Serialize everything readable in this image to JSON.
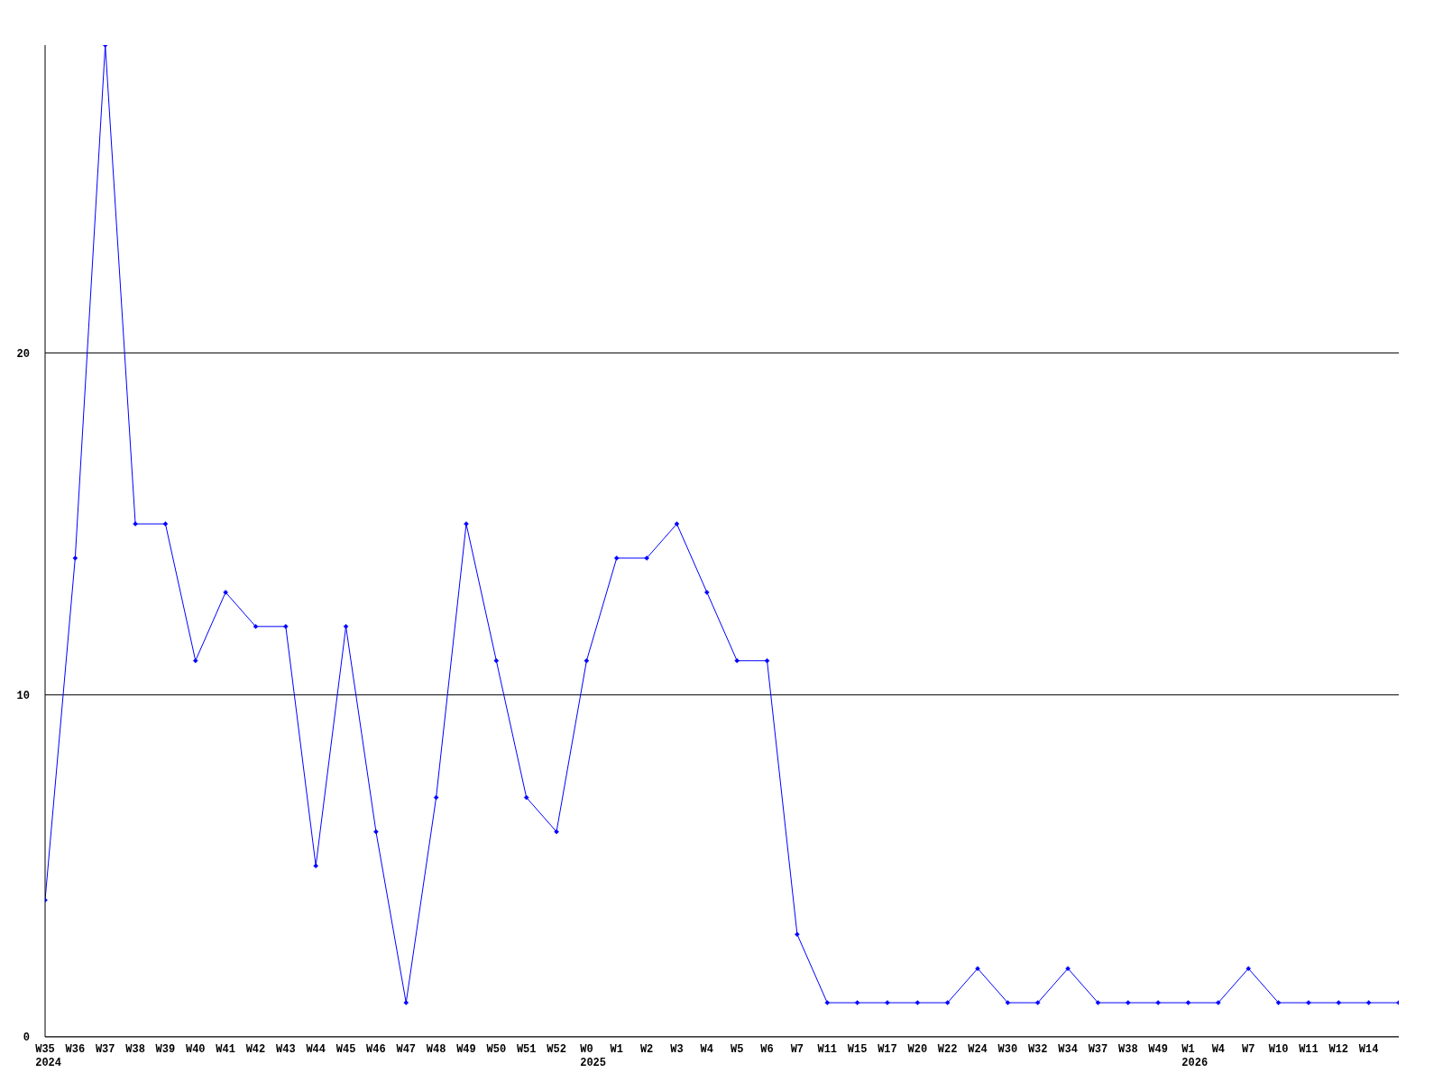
{
  "chart_data": {
    "type": "line",
    "categories": [
      "W35\n2024",
      "W36",
      "W37",
      "W38",
      "W39",
      "W40",
      "W41",
      "W42",
      "W43",
      "W44",
      "W45",
      "W46",
      "W47",
      "W48",
      "W49",
      "W50",
      "W51",
      "W52",
      "W0\n2025",
      "W1",
      "W2",
      "W3",
      "W4",
      "W5",
      "W6",
      "W7",
      "W11",
      "W15",
      "W17",
      "W20",
      "W22",
      "W24",
      "W30",
      "W32",
      "W34",
      "W37",
      "W38",
      "W49",
      "W1\n2026",
      "W4",
      "W7",
      "W10",
      "W11",
      "W12",
      "W14",
      null
    ],
    "values": [
      4,
      14,
      29,
      15,
      15,
      11,
      13,
      12,
      12,
      5,
      12,
      6,
      1,
      7,
      15,
      11,
      7,
      6,
      11,
      14,
      14,
      15,
      13,
      11,
      11,
      3,
      1,
      1,
      1,
      1,
      1,
      2,
      1,
      1,
      2,
      1,
      1,
      1,
      1,
      1,
      2,
      1,
      1,
      1,
      1,
      1
    ],
    "color": "#0000ff",
    "ylim": [
      0,
      29
    ],
    "yticks": [
      0,
      10,
      20
    ],
    "grid": "y",
    "marker": "diamond"
  }
}
